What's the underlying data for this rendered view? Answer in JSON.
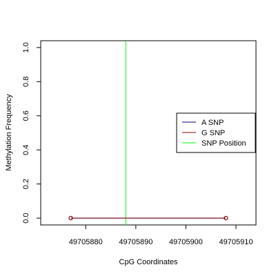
{
  "chart_data": {
    "type": "line",
    "title": "",
    "xlabel": "CpG Coordinates",
    "ylabel": "Methylation Frequency",
    "xlim": [
      49705871,
      49705914
    ],
    "ylim": [
      -0.04,
      1.04
    ],
    "x_ticks": [
      49705880,
      49705890,
      49705900,
      49705910
    ],
    "y_ticks": [
      0.0,
      0.2,
      0.4,
      0.6,
      0.8,
      1.0
    ],
    "y_tick_labels": [
      "0.0",
      "0.2",
      "0.4",
      "0.6",
      "0.8",
      "1.0"
    ],
    "grid": false,
    "legend_placement": "right",
    "series": [
      {
        "name": "A SNP",
        "color": "#000080",
        "x": [
          49705877,
          49705908
        ],
        "y": [
          0.0,
          0.0
        ],
        "marker": "open-circle"
      },
      {
        "name": "G SNP",
        "color": "#8B0000",
        "x": [
          49705877,
          49705908
        ],
        "y": [
          0.0,
          0.0
        ],
        "marker": "open-circle"
      }
    ],
    "snp_position": {
      "name": "SNP Position",
      "color": "#00FF00",
      "x": 49705888
    },
    "legend": [
      {
        "label": "A SNP",
        "color": "#000080"
      },
      {
        "label": "G SNP",
        "color": "#8B0000"
      },
      {
        "label": "SNP Position",
        "color": "#00FF00"
      }
    ]
  }
}
